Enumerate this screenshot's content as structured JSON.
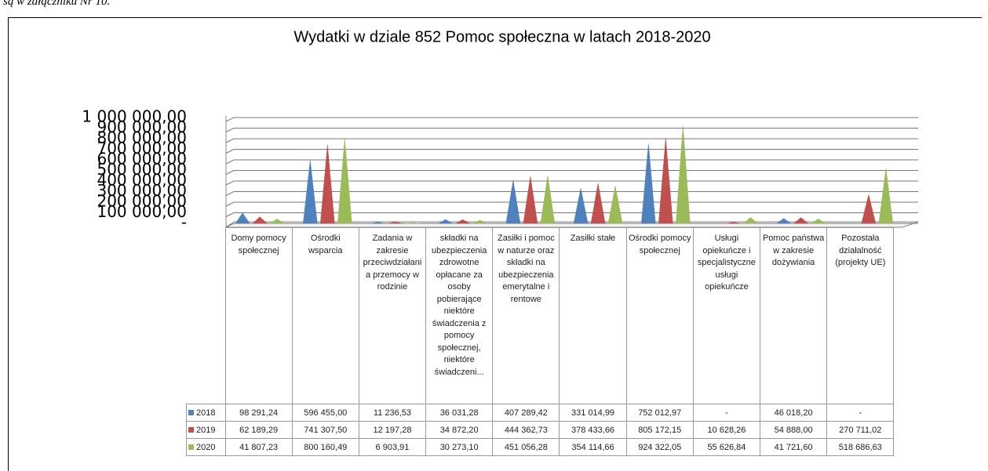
{
  "document_text": "są w załączniku Nr 10.",
  "chart_data": {
    "type": "bar",
    "title": "Wydatki w dziale 852 Pomoc społeczna w latach 2018-2020",
    "categories": [
      "Domy pomocy społecznej",
      "Ośrodki wsparcia",
      "Zadania w zakresie przeciwdziałania przemocy w rodzinie",
      "składki na ubezpieczenia zdrowotne opłacane za osoby pobierające niektóre świadczenia z pomocy społecznej, niektóre świadczeni...",
      "Zasiłki i pomoc w naturze oraz składki na ubezpieczenia emerytalne i rentowe",
      "Zasiłki stałe",
      "Ośrodki pomocy społecznej",
      "Usługi opiekuńcze i specjalistyczne usługi opiekuńcze",
      "Pomoc państwa w zakresie dożywiania",
      "Pozostała działalność (projekty UE)"
    ],
    "series": [
      {
        "name": "2018",
        "color": "#4f81bd",
        "values": [
          98291.24,
          596455.0,
          11236.53,
          36031.28,
          407289.42,
          331014.99,
          752012.97,
          null,
          46018.2,
          null
        ],
        "value_labels": [
          "98 291,24",
          "596 455,00",
          "11 236,53",
          "36 031,28",
          "407 289,42",
          "331 014,99",
          "752 012,97",
          "-",
          "46 018,20",
          "-"
        ]
      },
      {
        "name": "2019",
        "color": "#c0504d",
        "values": [
          62189.29,
          741307.5,
          12197.28,
          34872.2,
          444362.73,
          378433.66,
          805172.15,
          10628.26,
          54888.0,
          270711.02
        ],
        "value_labels": [
          "62 189,29",
          "741 307,50",
          "12 197,28",
          "34 872,20",
          "444 362,73",
          "378 433,66",
          "805 172,15",
          "10 628,26",
          "54 888,00",
          "270 711,02"
        ]
      },
      {
        "name": "2020",
        "color": "#9bbb59",
        "values": [
          41807.23,
          800160.49,
          6903.91,
          30273.1,
          451056.28,
          354114.66,
          924322.05,
          55626.84,
          41721.6,
          518686.63
        ],
        "value_labels": [
          "41 807,23",
          "800 160,49",
          "6 903,91",
          "30 273,10",
          "451 056,28",
          "354 114,66",
          "924 322,05",
          "55 626,84",
          "41 721,60",
          "518 686,63"
        ]
      }
    ],
    "ylim": [
      0,
      1000000
    ],
    "yticks": [
      {
        "value": 0,
        "label": "-"
      },
      {
        "value": 100000,
        "label": "100 000,00"
      },
      {
        "value": 200000,
        "label": "200 000,00"
      },
      {
        "value": 300000,
        "label": "300 000,00"
      },
      {
        "value": 400000,
        "label": "400 000,00"
      },
      {
        "value": 500000,
        "label": "500 000,00"
      },
      {
        "value": 600000,
        "label": "600 000,00"
      },
      {
        "value": 700000,
        "label": "700 000,00"
      },
      {
        "value": 800000,
        "label": "800 000,00"
      },
      {
        "value": 900000,
        "label": "900 000,00"
      },
      {
        "value": 1000000,
        "label": "1 000 000,00"
      }
    ],
    "grid": true
  }
}
